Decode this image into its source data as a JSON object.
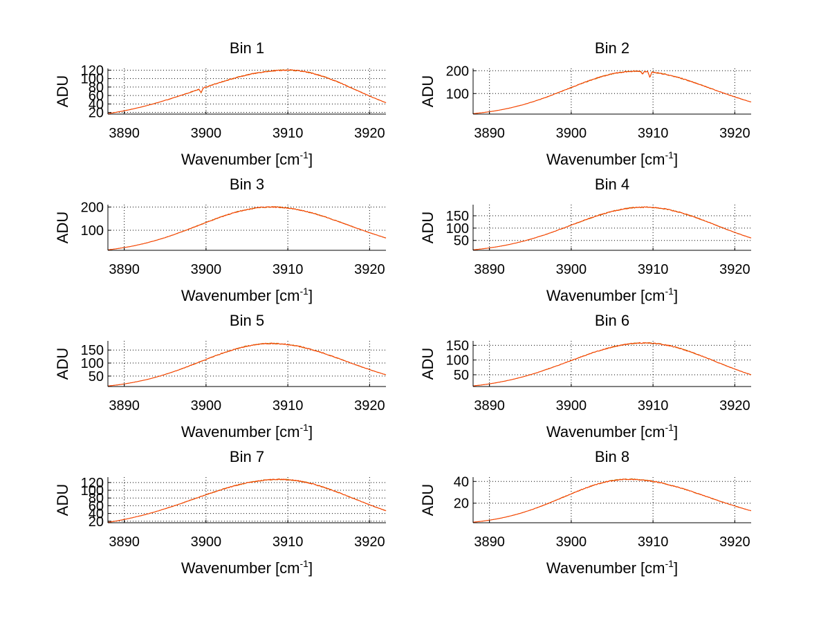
{
  "figure": {
    "line_colors": {
      "primary": "#ff3b00",
      "secondary": "#b07a00"
    }
  },
  "chart_data": [
    {
      "type": "line",
      "title": "Bin 1",
      "xlabel_main": "Wavenumber [cm",
      "xlabel_sup": "-1",
      "xlabel_end": "]",
      "ylabel": "ADU",
      "xlim": [
        3888,
        3922
      ],
      "xticks": [
        3890,
        3900,
        3910,
        3920
      ],
      "ylim": [
        16,
        124
      ],
      "yticks": [
        20,
        40,
        60,
        80,
        100,
        120
      ],
      "grid": true,
      "peak_x": 3910,
      "peak_y": 120,
      "start_y": 17,
      "end_y": 43,
      "features": [
        {
          "x": 3899.4,
          "depth": 10
        }
      ]
    },
    {
      "type": "line",
      "title": "Bin 2",
      "xlabel_main": "Wavenumber [cm",
      "xlabel_sup": "-1",
      "xlabel_end": "]",
      "ylabel": "ADU",
      "xlim": [
        3888,
        3922
      ],
      "xticks": [
        3890,
        3900,
        3910,
        3920
      ],
      "ylim": [
        10,
        210
      ],
      "yticks": [
        100,
        200
      ],
      "grid": true,
      "peak_x": 3908,
      "peak_y": 198,
      "start_y": 12,
      "end_y": 63,
      "features": [
        {
          "x": 3909.6,
          "depth": 25
        },
        {
          "x": 3908.7,
          "depth": 12
        }
      ]
    },
    {
      "type": "line",
      "title": "Bin 3",
      "xlabel_main": "Wavenumber [cm",
      "xlabel_sup": "-1",
      "xlabel_end": "]",
      "ylabel": "ADU",
      "xlim": [
        3888,
        3922
      ],
      "xticks": [
        3890,
        3900,
        3910,
        3920
      ],
      "ylim": [
        14,
        210
      ],
      "yticks": [
        100,
        200
      ],
      "grid": true,
      "peak_x": 3908,
      "peak_y": 200,
      "start_y": 16,
      "end_y": 67,
      "features": []
    },
    {
      "type": "line",
      "title": "Bin 4",
      "xlabel_main": "Wavenumber [cm",
      "xlabel_sup": "-1",
      "xlabel_end": "]",
      "ylabel": "ADU",
      "xlim": [
        3888,
        3922
      ],
      "xticks": [
        3890,
        3900,
        3910,
        3920
      ],
      "ylim": [
        10,
        195
      ],
      "yticks": [
        50,
        100,
        150
      ],
      "grid": true,
      "peak_x": 3909,
      "peak_y": 185,
      "start_y": 12,
      "end_y": 60,
      "features": []
    },
    {
      "type": "line",
      "title": "Bin 5",
      "xlabel_main": "Wavenumber [cm",
      "xlabel_sup": "-1",
      "xlabel_end": "]",
      "ylabel": "ADU",
      "xlim": [
        3888,
        3922
      ],
      "xticks": [
        3890,
        3900,
        3910,
        3920
      ],
      "ylim": [
        10,
        185
      ],
      "yticks": [
        50,
        100,
        150
      ],
      "grid": true,
      "peak_x": 3908,
      "peak_y": 175,
      "start_y": 12,
      "end_y": 55,
      "features": []
    },
    {
      "type": "line",
      "title": "Bin 6",
      "xlabel_main": "Wavenumber [cm",
      "xlabel_sup": "-1",
      "xlabel_end": "]",
      "ylabel": "ADU",
      "xlim": [
        3888,
        3922
      ],
      "xticks": [
        3890,
        3900,
        3910,
        3920
      ],
      "ylim": [
        10,
        165
      ],
      "yticks": [
        50,
        100,
        150
      ],
      "grid": true,
      "peak_x": 3909,
      "peak_y": 158,
      "start_y": 12,
      "end_y": 50,
      "features": []
    },
    {
      "type": "line",
      "title": "Bin 7",
      "xlabel_main": "Wavenumber [cm",
      "xlabel_sup": "-1",
      "xlabel_end": "]",
      "ylabel": "ADU",
      "xlim": [
        3888,
        3922
      ],
      "xticks": [
        3890,
        3900,
        3910,
        3920
      ],
      "ylim": [
        16,
        134
      ],
      "yticks": [
        20,
        40,
        60,
        80,
        100,
        120
      ],
      "grid": true,
      "peak_x": 3909,
      "peak_y": 128,
      "start_y": 17,
      "end_y": 47,
      "features": []
    },
    {
      "type": "line",
      "title": "Bin 8",
      "xlabel_main": "Wavenumber [cm",
      "xlabel_sup": "-1",
      "xlabel_end": "]",
      "ylabel": "ADU",
      "xlim": [
        3888,
        3922
      ],
      "xticks": [
        3890,
        3900,
        3910,
        3920
      ],
      "ylim": [
        2,
        44
      ],
      "yticks": [
        20,
        40
      ],
      "grid": true,
      "peak_x": 3907,
      "peak_y": 42,
      "start_y": 2.5,
      "end_y": 13,
      "features": []
    }
  ]
}
